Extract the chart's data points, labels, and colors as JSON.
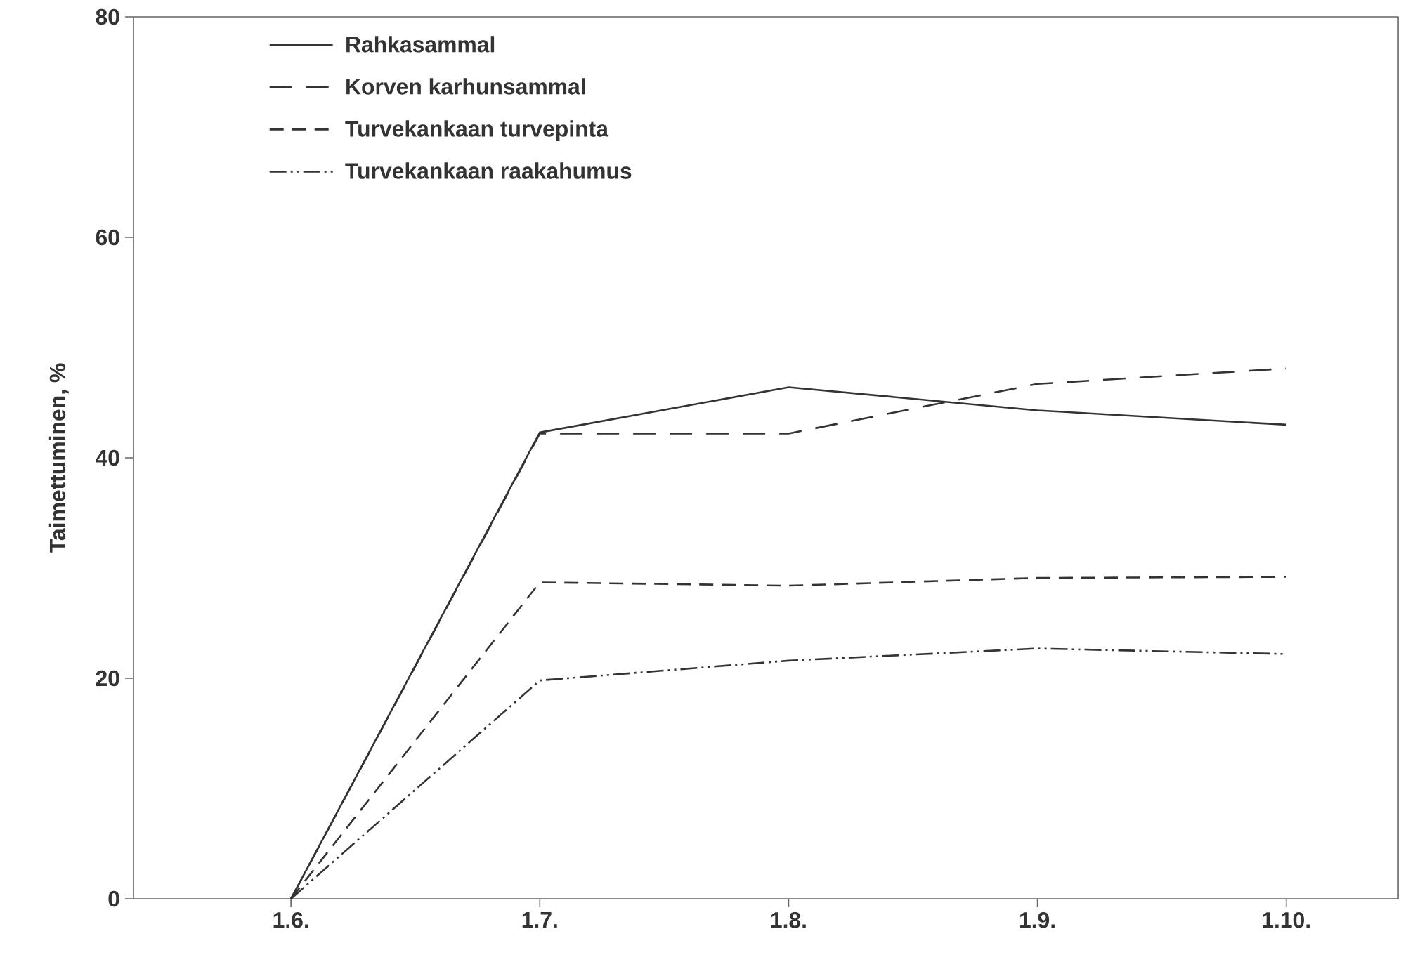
{
  "chart_data": {
    "type": "line",
    "ylabel": "Taimettuminen, %",
    "categories": [
      "1.6.",
      "1.7.",
      "1.8.",
      "1.9.",
      "1.10."
    ],
    "ylim": [
      0,
      80
    ],
    "yticks": [
      0,
      20,
      40,
      60,
      80
    ],
    "legend": "top left",
    "grid": false,
    "series": [
      {
        "name": "Rahkasammal",
        "color": "#333333",
        "line_style": "solid",
        "values": [
          0,
          42.3,
          46.4,
          44.3,
          43.0
        ]
      },
      {
        "name": "Korven karhunsammal",
        "color": "#333333",
        "line_style": "long dashed",
        "values": [
          0,
          42.2,
          42.2,
          46.7,
          48.1
        ]
      },
      {
        "name": "Turvekankaan turvepinta",
        "color": "#333333",
        "line_style": "dashed",
        "values": [
          0,
          28.7,
          28.4,
          29.1,
          29.2
        ]
      },
      {
        "name": "Turvekankaan raakahumus",
        "color": "#333333",
        "line_style": "dash dot dot",
        "values": [
          0,
          19.8,
          21.6,
          22.7,
          22.2
        ]
      }
    ]
  }
}
